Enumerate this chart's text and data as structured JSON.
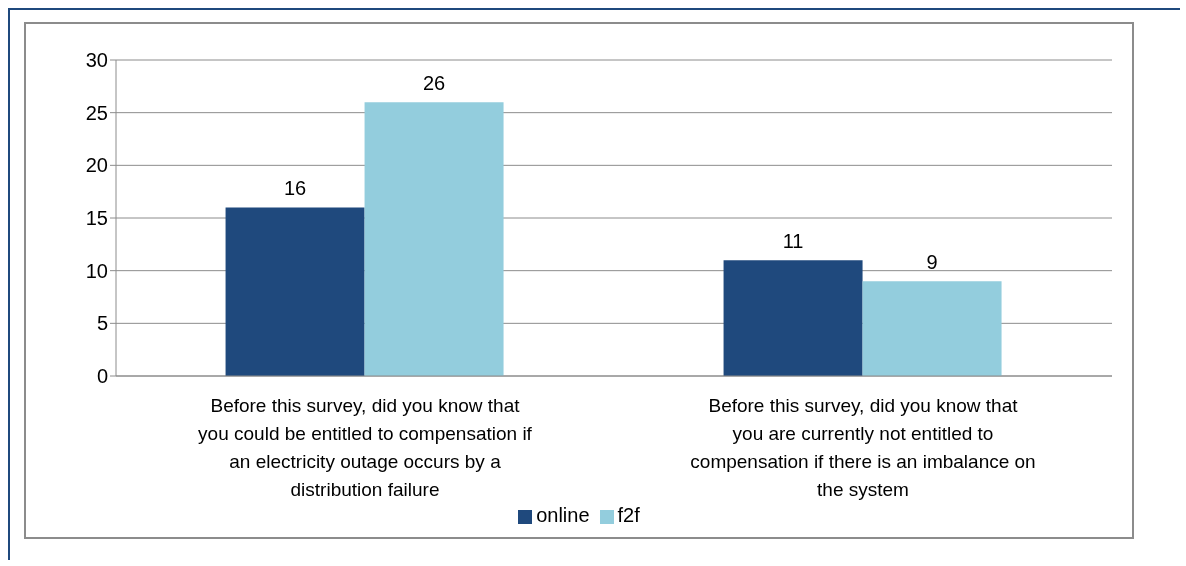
{
  "chart_data": {
    "type": "bar",
    "categories": [
      "Before this survey, did you know that you could be entitled to compensation if an electricity outage occurs by a distribution failure",
      "Before this survey, did you know that you are currently not entitled to compensation if there is an imbalance on the system"
    ],
    "series": [
      {
        "name": "online",
        "color": "#1f497d",
        "values": [
          16,
          11
        ]
      },
      {
        "name": "f2f",
        "color": "#93cddd",
        "values": [
          26,
          9
        ]
      }
    ],
    "ylim": [
      0,
      30
    ],
    "yticks": [
      0,
      5,
      10,
      15,
      20,
      25,
      30
    ],
    "grid": "y",
    "legend": "bottom",
    "data_labels": true
  }
}
